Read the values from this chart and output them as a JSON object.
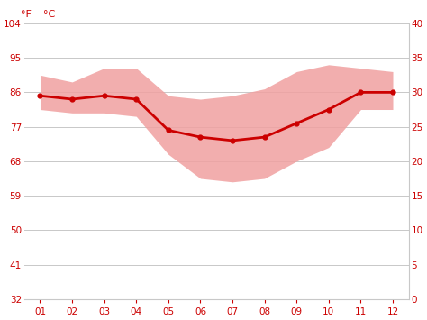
{
  "months": [
    1,
    2,
    3,
    4,
    5,
    6,
    7,
    8,
    9,
    10,
    11,
    12
  ],
  "month_labels": [
    "01",
    "02",
    "03",
    "04",
    "05",
    "06",
    "07",
    "08",
    "09",
    "10",
    "11",
    "12"
  ],
  "avg_temp_C": [
    29.5,
    29.0,
    29.5,
    29.0,
    24.5,
    23.5,
    23.0,
    23.5,
    25.5,
    27.5,
    30.0,
    30.0
  ],
  "max_temp_C": [
    32.5,
    31.5,
    33.5,
    33.5,
    29.5,
    29.0,
    29.5,
    30.5,
    33.0,
    34.0,
    33.5,
    33.0
  ],
  "min_temp_C": [
    27.5,
    27.0,
    27.0,
    26.5,
    21.0,
    17.5,
    17.0,
    17.5,
    20.0,
    22.0,
    27.5,
    27.5
  ],
  "ylim_C": [
    0,
    40
  ],
  "yticks_C": [
    0,
    5,
    10,
    15,
    20,
    25,
    30,
    35,
    40
  ],
  "yticks_F": [
    32,
    41,
    50,
    59,
    68,
    77,
    86,
    95,
    104
  ],
  "line_color": "#cc0000",
  "band_color": "#f0a0a0",
  "band_alpha": 0.85,
  "grid_color": "#c8c8c8",
  "tick_color": "#cc0000",
  "background_color": "#ffffff",
  "figure_width": 4.74,
  "figure_height": 3.55,
  "dpi": 100
}
